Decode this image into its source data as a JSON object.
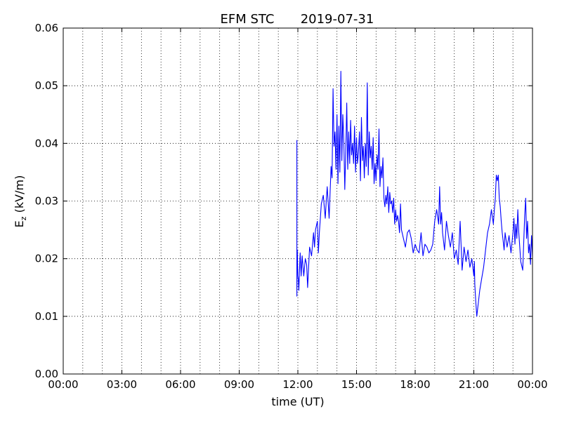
{
  "chart_data": {
    "type": "line",
    "title": "EFM STC",
    "subtitle": "2019-07-31",
    "xlabel": "time (UT)",
    "ylabel": {
      "main": "E",
      "subscript": "z",
      "suffix": " (kV/m)"
    },
    "xlim": [
      0,
      24
    ],
    "ylim": [
      0.0,
      0.06
    ],
    "x_ticks": [
      0,
      3,
      6,
      9,
      12,
      15,
      18,
      21,
      24
    ],
    "x_tick_labels": [
      "00:00",
      "03:00",
      "06:00",
      "09:00",
      "12:00",
      "15:00",
      "18:00",
      "21:00",
      "00:00"
    ],
    "x_minor_ticks": [
      1,
      2,
      4,
      5,
      7,
      8,
      10,
      11,
      13,
      14,
      16,
      17,
      19,
      20,
      22,
      23
    ],
    "y_ticks": [
      0.0,
      0.01,
      0.02,
      0.03,
      0.04,
      0.05,
      0.06
    ],
    "y_tick_labels": [
      "0.00",
      "0.01",
      "0.02",
      "0.03",
      "0.04",
      "0.05",
      "0.06"
    ],
    "grid": true,
    "line_color": "#0000ff",
    "series": [
      {
        "x": [
          11.95,
          11.95,
          11.96,
          11.97,
          12.0,
          12.02,
          12.05,
          12.08,
          12.12,
          12.17,
          12.22,
          12.3,
          12.38,
          12.45,
          12.5,
          12.55,
          12.6,
          12.7,
          12.8,
          12.85,
          12.9,
          13.0,
          13.05,
          13.1,
          13.2,
          13.3,
          13.4,
          13.45,
          13.5,
          13.6,
          13.7,
          13.75,
          13.8,
          13.85,
          13.9,
          13.95,
          14.0,
          14.05,
          14.1,
          14.15,
          14.2,
          14.25,
          14.3,
          14.35,
          14.4,
          14.45,
          14.5,
          14.55,
          14.6,
          14.65,
          14.7,
          14.75,
          14.8,
          14.85,
          14.9,
          14.95,
          15.0,
          15.05,
          15.1,
          15.15,
          15.2,
          15.25,
          15.3,
          15.35,
          15.4,
          15.45,
          15.5,
          15.55,
          15.6,
          15.65,
          15.7,
          15.75,
          15.8,
          15.85,
          15.9,
          15.95,
          16.0,
          16.05,
          16.1,
          16.15,
          16.2,
          16.25,
          16.3,
          16.35,
          16.4,
          16.45,
          16.5,
          16.55,
          16.6,
          16.65,
          16.7,
          16.75,
          16.8,
          16.85,
          16.9,
          16.95,
          17.0,
          17.05,
          17.1,
          17.15,
          17.2,
          17.25,
          17.3,
          17.4,
          17.5,
          17.6,
          17.7,
          17.8,
          17.9,
          18.0,
          18.1,
          18.2,
          18.3,
          18.4,
          18.5,
          18.6,
          18.7,
          18.8,
          18.9,
          19.0,
          19.1,
          19.2,
          19.25,
          19.3,
          19.35,
          19.4,
          19.5,
          19.6,
          19.7,
          19.8,
          19.9,
          20.0,
          20.1,
          20.2,
          20.3,
          20.4,
          20.5,
          20.6,
          20.7,
          20.8,
          20.9,
          21.0,
          21.03,
          21.05,
          21.1,
          21.15,
          21.2,
          21.25,
          21.3,
          21.4,
          21.5,
          21.6,
          21.7,
          21.8,
          21.9,
          22.0,
          22.05,
          22.1,
          22.15,
          22.2,
          22.25,
          22.3,
          22.35,
          22.4,
          22.45,
          22.5,
          22.55,
          22.6,
          22.7,
          22.8,
          22.9,
          23.0,
          23.05,
          23.1,
          23.15,
          23.2,
          23.25,
          23.3,
          23.35,
          23.4,
          23.5,
          23.6,
          23.65,
          23.7,
          23.75,
          23.8,
          23.85,
          23.9,
          23.95,
          24.0
        ],
        "y": [
          0.0405,
          0.0135,
          0.02,
          0.0215,
          0.017,
          0.0165,
          0.0145,
          0.0175,
          0.021,
          0.017,
          0.0205,
          0.017,
          0.02,
          0.019,
          0.015,
          0.0185,
          0.022,
          0.0205,
          0.0245,
          0.022,
          0.025,
          0.0265,
          0.021,
          0.0245,
          0.0295,
          0.031,
          0.027,
          0.03,
          0.0325,
          0.027,
          0.036,
          0.034,
          0.0495,
          0.0395,
          0.042,
          0.0355,
          0.045,
          0.033,
          0.043,
          0.035,
          0.0525,
          0.037,
          0.045,
          0.0405,
          0.032,
          0.0385,
          0.047,
          0.0355,
          0.042,
          0.0365,
          0.044,
          0.038,
          0.04,
          0.0365,
          0.043,
          0.035,
          0.041,
          0.0365,
          0.0385,
          0.042,
          0.0335,
          0.0445,
          0.037,
          0.0395,
          0.034,
          0.04,
          0.036,
          0.0505,
          0.0345,
          0.042,
          0.0375,
          0.0395,
          0.0355,
          0.041,
          0.033,
          0.0365,
          0.0335,
          0.038,
          0.0355,
          0.0425,
          0.0325,
          0.036,
          0.034,
          0.0375,
          0.0305,
          0.029,
          0.031,
          0.0295,
          0.0325,
          0.028,
          0.0315,
          0.0295,
          0.03,
          0.028,
          0.0305,
          0.026,
          0.0285,
          0.0265,
          0.0275,
          0.0265,
          0.0245,
          0.0295,
          0.025,
          0.0235,
          0.022,
          0.0245,
          0.025,
          0.0235,
          0.021,
          0.0225,
          0.0215,
          0.021,
          0.0245,
          0.0205,
          0.0225,
          0.022,
          0.021,
          0.0215,
          0.0225,
          0.0265,
          0.0285,
          0.026,
          0.0325,
          0.026,
          0.028,
          0.0245,
          0.0215,
          0.0265,
          0.024,
          0.022,
          0.0245,
          0.02,
          0.0215,
          0.019,
          0.0265,
          0.018,
          0.022,
          0.0195,
          0.0215,
          0.0185,
          0.02,
          0.017,
          0.0195,
          0.0155,
          0.0125,
          0.01,
          0.0115,
          0.013,
          0.0145,
          0.0165,
          0.0185,
          0.0215,
          0.0245,
          0.026,
          0.0285,
          0.026,
          0.0285,
          0.0305,
          0.0345,
          0.0335,
          0.0345,
          0.0305,
          0.029,
          0.0265,
          0.0245,
          0.023,
          0.0215,
          0.0245,
          0.022,
          0.024,
          0.021,
          0.0245,
          0.027,
          0.0225,
          0.026,
          0.0235,
          0.0285,
          0.0245,
          0.022,
          0.0195,
          0.018,
          0.0275,
          0.0305,
          0.0235,
          0.0265,
          0.021,
          0.0225,
          0.019,
          0.024,
          0.0205
        ]
      }
    ]
  }
}
